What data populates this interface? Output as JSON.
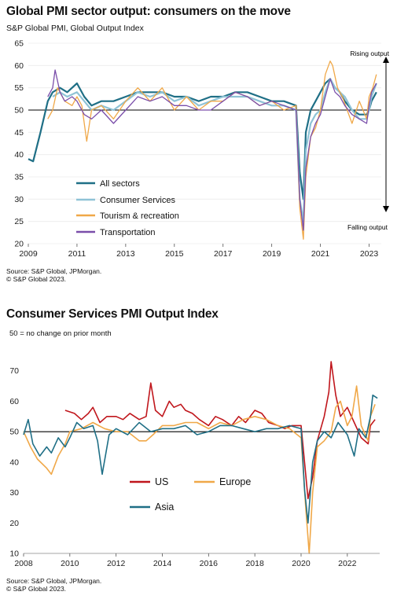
{
  "chart1": {
    "title": "Global PMI sector output: consumers on the move",
    "subtitle": "S&P Global PMI, Global Output Index",
    "source_lines": [
      "Source: S&P Global, JPMorgan.",
      "© S&P Global 2023."
    ],
    "annotations": {
      "up": "Rising output",
      "down": "Falling output"
    }
  },
  "chart2": {
    "title": "Consumer Services PMI Output Index",
    "subtitle": "50 = no change on prior month",
    "source_lines": [
      "Source: S&P Global, JPMorgan.",
      "© S&P Global 2023."
    ]
  },
  "chart_data": [
    {
      "type": "line",
      "title": "Global PMI sector output: consumers on the move",
      "ylim": [
        20,
        65
      ],
      "yticks": [
        20,
        25,
        30,
        35,
        40,
        45,
        50,
        55,
        60,
        65
      ],
      "xlim": [
        2009.0,
        2023.5
      ],
      "xticks": [
        "2009",
        "2011",
        "2013",
        "2015",
        "2017",
        "2019",
        "2021",
        "2023"
      ],
      "reference_line": 50,
      "legend_position": "bottom-left",
      "series": [
        {
          "name": "All sectors",
          "color": "#1f6f86",
          "width": 2.2,
          "x": [
            2009.0,
            2009.2,
            2009.5,
            2009.8,
            2010.0,
            2010.3,
            2010.6,
            2011.0,
            2011.3,
            2011.6,
            2012.0,
            2012.5,
            2013.0,
            2013.5,
            2014.0,
            2014.5,
            2015.0,
            2015.5,
            2016.0,
            2016.5,
            2017.0,
            2017.5,
            2018.0,
            2018.5,
            2019.0,
            2019.5,
            2020.0,
            2020.15,
            2020.3,
            2020.4,
            2020.6,
            2020.8,
            2021.0,
            2021.2,
            2021.4,
            2021.6,
            2021.8,
            2022.0,
            2022.3,
            2022.6,
            2022.9,
            2023.0,
            2023.1,
            2023.3
          ],
          "y": [
            39,
            38.5,
            45,
            52,
            54,
            55,
            54,
            56,
            53,
            51,
            52,
            52,
            53,
            54,
            54,
            54,
            53,
            53,
            52,
            53,
            53,
            54,
            54,
            53,
            52,
            52,
            51,
            36,
            30,
            45,
            50,
            52,
            54,
            56,
            57,
            55,
            54,
            52,
            50,
            49,
            49,
            50,
            52,
            54
          ]
        },
        {
          "name": "Consumer Services",
          "color": "#8fc3d6",
          "width": 2.2,
          "x": [
            2010.0,
            2010.3,
            2010.6,
            2011.0,
            2011.3,
            2011.6,
            2012.0,
            2012.5,
            2013.0,
            2013.5,
            2014.0,
            2014.5,
            2015.0,
            2015.5,
            2016.0,
            2016.5,
            2017.0,
            2017.5,
            2018.0,
            2018.5,
            2019.0,
            2019.5,
            2020.0,
            2020.15,
            2020.3,
            2020.4,
            2020.6,
            2020.8,
            2021.0,
            2021.2,
            2021.4,
            2021.6,
            2021.8,
            2022.0,
            2022.3,
            2022.6,
            2022.9,
            2023.0,
            2023.1,
            2023.3
          ],
          "y": [
            53,
            54,
            53,
            54,
            52,
            50,
            51,
            50,
            52,
            54,
            53,
            54,
            52,
            53,
            51,
            52,
            53,
            53,
            53,
            52,
            51,
            51,
            50,
            30,
            25,
            41,
            47,
            49,
            50,
            54,
            57,
            55,
            54,
            53,
            50,
            48,
            48,
            50,
            53,
            56
          ]
        },
        {
          "name": "Tourism & recreation",
          "color": "#f0a848",
          "width": 1.3,
          "x": [
            2009.8,
            2010.0,
            2010.2,
            2010.5,
            2010.8,
            2011.0,
            2011.2,
            2011.4,
            2011.6,
            2012.0,
            2012.5,
            2013.0,
            2013.5,
            2014.0,
            2014.5,
            2015.0,
            2015.5,
            2016.0,
            2016.5,
            2017.0,
            2017.5,
            2018.0,
            2018.5,
            2019.0,
            2019.5,
            2020.0,
            2020.15,
            2020.3,
            2020.4,
            2020.6,
            2020.8,
            2021.0,
            2021.2,
            2021.4,
            2021.5,
            2021.7,
            2021.9,
            2022.1,
            2022.3,
            2022.6,
            2022.9,
            2023.0,
            2023.15,
            2023.3
          ],
          "y": [
            48,
            50,
            55,
            52,
            51,
            53,
            51,
            43,
            50,
            51,
            48,
            52,
            55,
            52,
            55,
            50,
            53,
            50,
            52,
            52,
            54,
            53,
            51,
            52,
            50,
            51,
            28,
            21,
            35,
            44,
            46,
            50,
            58,
            61,
            60,
            55,
            53,
            50,
            47,
            52,
            48,
            53,
            55,
            58
          ]
        },
        {
          "name": "Transportation",
          "color": "#7a4eaa",
          "width": 1.3,
          "x": [
            2009.8,
            2010.0,
            2010.1,
            2010.3,
            2010.5,
            2010.8,
            2011.0,
            2011.3,
            2011.6,
            2012.0,
            2012.5,
            2013.0,
            2013.5,
            2014.0,
            2014.5,
            2015.0,
            2015.5,
            2016.0,
            2016.5,
            2017.0,
            2017.5,
            2018.0,
            2018.5,
            2019.0,
            2019.5,
            2020.0,
            2020.15,
            2020.3,
            2020.4,
            2020.6,
            2020.8,
            2021.0,
            2021.2,
            2021.4,
            2021.6,
            2021.8,
            2022.0,
            2022.3,
            2022.6,
            2022.9,
            2023.0,
            2023.1,
            2023.3
          ],
          "y": [
            53,
            55,
            59,
            54,
            52,
            53,
            52,
            49,
            48,
            50,
            47,
            50,
            53,
            52,
            53,
            51,
            51,
            50,
            50,
            52,
            54,
            53,
            51,
            52,
            51,
            50,
            30,
            23,
            37,
            44,
            47,
            49,
            53,
            57,
            54,
            53,
            51,
            49,
            48,
            47,
            51,
            54,
            56
          ]
        }
      ]
    },
    {
      "type": "line",
      "title": "Consumer Services PMI Output Index",
      "ylim": [
        10,
        80
      ],
      "yticks": [
        10,
        20,
        30,
        40,
        50,
        60,
        70
      ],
      "xlim": [
        2008.0,
        2023.4
      ],
      "xticks": [
        "2008",
        "2010",
        "2012",
        "2014",
        "2016",
        "2018",
        "2020",
        "2022"
      ],
      "reference_line": 50,
      "legend_position": "bottom-left",
      "series": [
        {
          "name": "US",
          "color": "#c0161c",
          "width": 1.6,
          "x": [
            2009.8,
            2010.2,
            2010.5,
            2010.8,
            2011.0,
            2011.3,
            2011.6,
            2012.0,
            2012.3,
            2012.6,
            2013.0,
            2013.3,
            2013.5,
            2013.7,
            2014.0,
            2014.3,
            2014.5,
            2014.8,
            2015.0,
            2015.3,
            2015.6,
            2016.0,
            2016.3,
            2016.6,
            2017.0,
            2017.3,
            2017.6,
            2018.0,
            2018.3,
            2018.6,
            2019.0,
            2019.3,
            2019.6,
            2020.0,
            2020.15,
            2020.3,
            2020.5,
            2020.7,
            2021.0,
            2021.2,
            2021.3,
            2021.5,
            2021.7,
            2022.0,
            2022.3,
            2022.6,
            2022.9,
            2023.0,
            2023.2
          ],
          "y": [
            57,
            56,
            54,
            56,
            58,
            53,
            55,
            55,
            54,
            56,
            54,
            55,
            66,
            57,
            55,
            60,
            58,
            59,
            57,
            56,
            54,
            52,
            55,
            54,
            52,
            55,
            53,
            57,
            56,
            53,
            52,
            51,
            52,
            52,
            40,
            28,
            35,
            47,
            55,
            63,
            73,
            62,
            55,
            58,
            53,
            48,
            46,
            52,
            54
          ]
        },
        {
          "name": "Europe",
          "color": "#f0a848",
          "width": 1.6,
          "x": [
            2008.0,
            2008.3,
            2008.6,
            2009.0,
            2009.2,
            2009.5,
            2009.8,
            2010.0,
            2010.5,
            2011.0,
            2011.5,
            2012.0,
            2012.5,
            2013.0,
            2013.3,
            2013.6,
            2014.0,
            2014.5,
            2015.0,
            2015.5,
            2016.0,
            2016.5,
            2017.0,
            2017.5,
            2018.0,
            2018.5,
            2019.0,
            2019.5,
            2020.0,
            2020.2,
            2020.35,
            2020.5,
            2020.7,
            2021.0,
            2021.3,
            2021.5,
            2021.7,
            2022.0,
            2022.2,
            2022.4,
            2022.6,
            2022.9,
            2023.0,
            2023.2
          ],
          "y": [
            50,
            45,
            41,
            38,
            36,
            42,
            46,
            50,
            51,
            53,
            51,
            50,
            50,
            47,
            47,
            49,
            52,
            52,
            53,
            53,
            51,
            53,
            52,
            54,
            55,
            54,
            52,
            51,
            48,
            25,
            10,
            30,
            45,
            47,
            50,
            58,
            60,
            52,
            55,
            65,
            52,
            47,
            55,
            59
          ]
        },
        {
          "name": "Asia",
          "color": "#1f6f86",
          "width": 1.6,
          "x": [
            2008.0,
            2008.2,
            2008.4,
            2008.7,
            2009.0,
            2009.2,
            2009.5,
            2009.8,
            2010.0,
            2010.3,
            2010.6,
            2011.0,
            2011.2,
            2011.4,
            2011.7,
            2012.0,
            2012.5,
            2013.0,
            2013.5,
            2014.0,
            2014.5,
            2015.0,
            2015.5,
            2016.0,
            2016.5,
            2017.0,
            2017.5,
            2018.0,
            2018.5,
            2019.0,
            2019.5,
            2020.0,
            2020.15,
            2020.3,
            2020.5,
            2020.7,
            2021.0,
            2021.3,
            2021.6,
            2022.0,
            2022.3,
            2022.5,
            2022.8,
            2023.0,
            2023.1,
            2023.3
          ],
          "y": [
            49,
            54,
            46,
            42,
            45,
            43,
            48,
            45,
            48,
            53,
            51,
            52,
            47,
            36,
            49,
            51,
            49,
            53,
            50,
            51,
            51,
            52,
            49,
            50,
            52,
            52,
            51,
            50,
            51,
            51,
            52,
            51,
            31,
            20,
            40,
            47,
            50,
            48,
            53,
            49,
            42,
            51,
            48,
            55,
            62,
            61
          ]
        }
      ]
    }
  ]
}
